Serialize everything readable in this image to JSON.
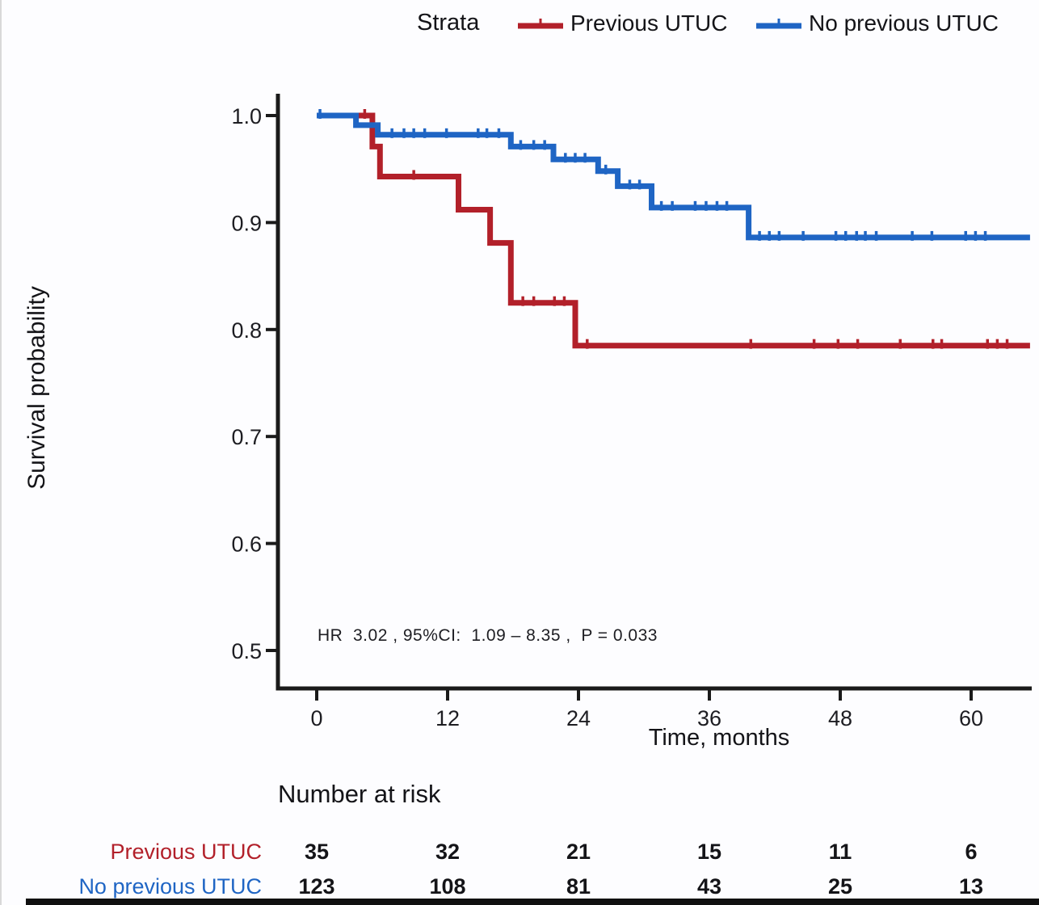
{
  "legend": {
    "title": "Strata",
    "items": [
      {
        "label": "Previous UTUC",
        "color": "#b2202a"
      },
      {
        "label": "No previous UTUC",
        "color": "#1f65c4"
      }
    ]
  },
  "chart_data": {
    "type": "line",
    "subtype": "kaplan-meier-step",
    "xlabel": "Time, months",
    "ylabel": "Survival probability",
    "x_ticks": [
      0,
      12,
      24,
      36,
      48,
      60
    ],
    "y_tick_labels": [
      "1.0",
      "0.9",
      "0.8",
      "0.7",
      "0.6",
      "0.5"
    ],
    "xlim": [
      0,
      65.5
    ],
    "ylim": [
      0.475,
      1.0
    ],
    "grid": false,
    "legend_position": "top",
    "annotation": "HR  3.02 , 95%CI:  1.09 – 8.35 ,  P = 0.033",
    "series": [
      {
        "name": "Previous UTUC",
        "color": "#b2202a",
        "steps": [
          [
            0,
            1.0
          ],
          [
            5.1,
            1.0
          ],
          [
            5.1,
            0.971
          ],
          [
            5.8,
            0.971
          ],
          [
            5.8,
            0.943
          ],
          [
            13.0,
            0.943
          ],
          [
            13.0,
            0.912
          ],
          [
            15.9,
            0.912
          ],
          [
            15.9,
            0.881
          ],
          [
            17.8,
            0.881
          ],
          [
            17.8,
            0.825
          ],
          [
            23.7,
            0.825
          ],
          [
            23.7,
            0.785
          ],
          [
            65.4,
            0.785
          ]
        ],
        "censors": [
          [
            4.4,
            1.0
          ],
          [
            8.9,
            0.943
          ],
          [
            18.9,
            0.825
          ],
          [
            19.9,
            0.825
          ],
          [
            21.8,
            0.825
          ],
          [
            22.7,
            0.825
          ],
          [
            24.8,
            0.785
          ],
          [
            39.8,
            0.785
          ],
          [
            45.6,
            0.785
          ],
          [
            47.8,
            0.785
          ],
          [
            49.6,
            0.785
          ],
          [
            53.5,
            0.785
          ],
          [
            56.5,
            0.785
          ],
          [
            57.3,
            0.785
          ],
          [
            61.5,
            0.785
          ],
          [
            62.4,
            0.785
          ],
          [
            63.3,
            0.785
          ]
        ]
      },
      {
        "name": "No previous UTUC",
        "color": "#1f65c4",
        "steps": [
          [
            0,
            1.0
          ],
          [
            3.6,
            1.0
          ],
          [
            3.6,
            0.991
          ],
          [
            5.6,
            0.991
          ],
          [
            5.6,
            0.982
          ],
          [
            17.8,
            0.982
          ],
          [
            17.8,
            0.971
          ],
          [
            21.7,
            0.971
          ],
          [
            21.7,
            0.959
          ],
          [
            25.8,
            0.959
          ],
          [
            25.8,
            0.948
          ],
          [
            27.6,
            0.948
          ],
          [
            27.6,
            0.934
          ],
          [
            30.7,
            0.934
          ],
          [
            30.7,
            0.914
          ],
          [
            39.6,
            0.914
          ],
          [
            39.6,
            0.886
          ],
          [
            65.4,
            0.886
          ]
        ],
        "censors": [
          [
            0.3,
            1.0
          ],
          [
            6.9,
            0.982
          ],
          [
            8.0,
            0.982
          ],
          [
            8.9,
            0.982
          ],
          [
            9.9,
            0.982
          ],
          [
            11.9,
            0.982
          ],
          [
            14.8,
            0.982
          ],
          [
            15.6,
            0.982
          ],
          [
            16.7,
            0.982
          ],
          [
            18.7,
            0.971
          ],
          [
            19.9,
            0.971
          ],
          [
            20.9,
            0.971
          ],
          [
            22.8,
            0.959
          ],
          [
            23.7,
            0.959
          ],
          [
            24.6,
            0.959
          ],
          [
            26.5,
            0.948
          ],
          [
            28.7,
            0.934
          ],
          [
            29.6,
            0.934
          ],
          [
            31.6,
            0.914
          ],
          [
            32.6,
            0.914
          ],
          [
            34.7,
            0.914
          ],
          [
            35.7,
            0.914
          ],
          [
            36.7,
            0.914
          ],
          [
            37.6,
            0.914
          ],
          [
            40.6,
            0.886
          ],
          [
            41.5,
            0.886
          ],
          [
            42.4,
            0.886
          ],
          [
            44.6,
            0.886
          ],
          [
            47.6,
            0.886
          ],
          [
            48.5,
            0.886
          ],
          [
            49.5,
            0.886
          ],
          [
            50.3,
            0.886
          ],
          [
            51.3,
            0.886
          ],
          [
            54.6,
            0.886
          ],
          [
            56.4,
            0.886
          ],
          [
            59.5,
            0.886
          ],
          [
            60.4,
            0.886
          ],
          [
            61.3,
            0.886
          ]
        ]
      }
    ]
  },
  "risk_table": {
    "title": "Number at risk",
    "rows": [
      {
        "label": "Previous UTUC",
        "color": "#b2202a",
        "values": [
          "35",
          "32",
          "21",
          "15",
          "11",
          "6"
        ]
      },
      {
        "label": "No previous UTUC",
        "color": "#1f65c4",
        "values": [
          "123",
          "108",
          "81",
          "43",
          "25",
          "13"
        ]
      }
    ]
  }
}
